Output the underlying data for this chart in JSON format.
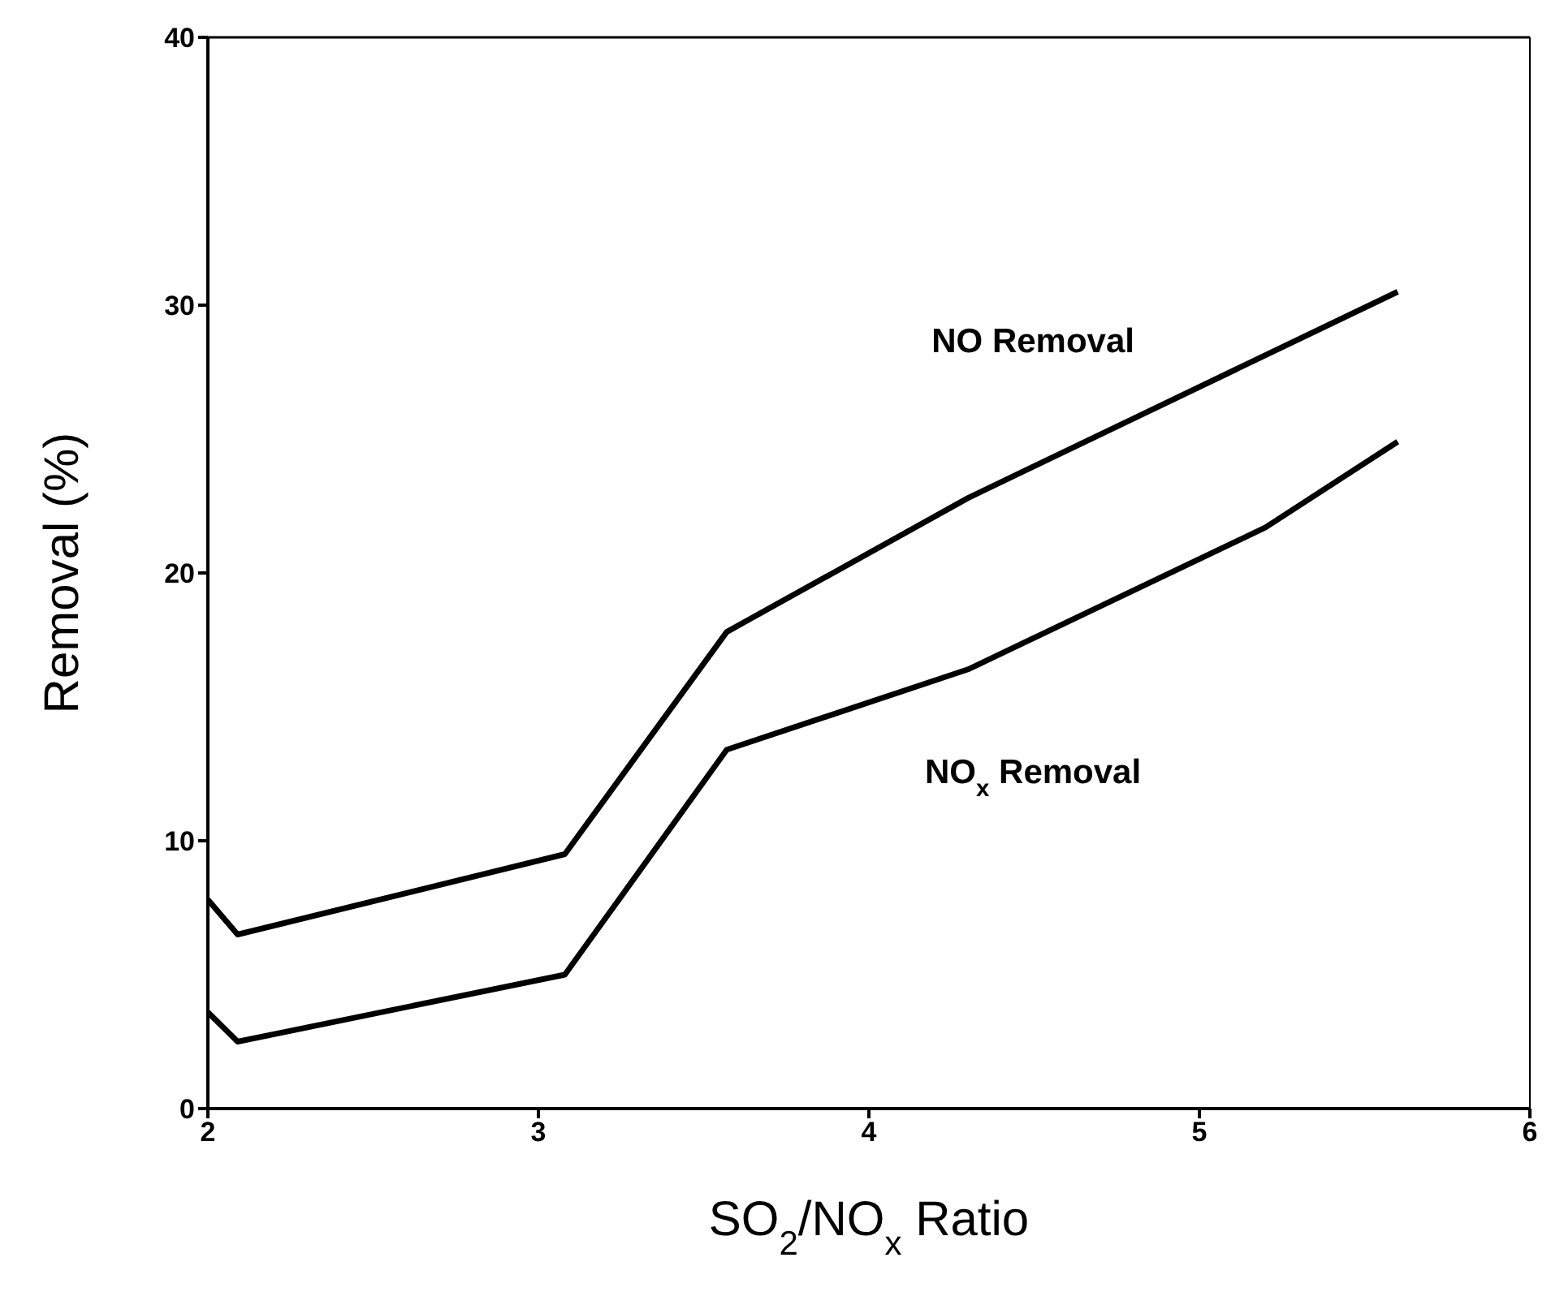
{
  "chart_data": {
    "type": "line",
    "xlabel": "SO$_{2}$/NO$_{x}$ Ratio",
    "ylabel": "Removal (%)",
    "xlim": [
      2,
      6
    ],
    "xticks": [
      2,
      3,
      4,
      5,
      6
    ],
    "ylim": [
      0,
      40
    ],
    "yticks": [
      0,
      10,
      20,
      30,
      40
    ],
    "marker": "none",
    "line_style": "solid",
    "series": [
      {
        "name": "NO Removal",
        "color": "#000000",
        "x": [
          2,
          2.09,
          3.08,
          3.57,
          4.3,
          5.6
        ],
        "values": [
          7.8,
          6.5,
          9.5,
          17.8,
          22.8,
          30.5
        ]
      },
      {
        "name": "NO$_{x}$ Removal",
        "color": "#000000",
        "x": [
          2,
          2.09,
          3.08,
          3.57,
          4.3,
          5.2,
          5.6
        ],
        "values": [
          3.6,
          2.5,
          5.0,
          13.4,
          16.4,
          21.7,
          24.9
        ]
      }
    ]
  }
}
